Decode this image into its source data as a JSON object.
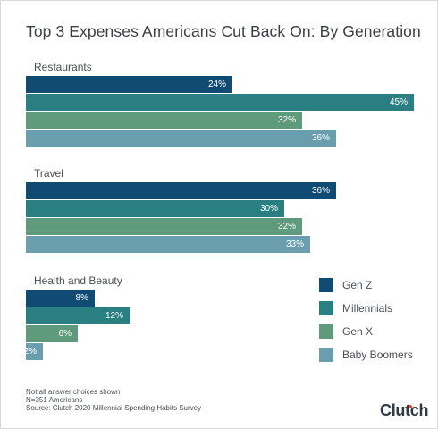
{
  "title": "Top 3 Expenses Americans Cut Back On: By Generation",
  "chart_data": {
    "type": "bar",
    "orientation": "horizontal",
    "title": "Top 3 Expenses Americans Cut Back On: By Generation",
    "categories": [
      "Restaurants",
      "Travel",
      "Health and Beauty"
    ],
    "series": [
      {
        "name": "Gen Z",
        "color": "#0f4b73",
        "values": [
          24,
          36,
          8
        ],
        "labels": [
          "24%",
          "36%",
          "8%"
        ]
      },
      {
        "name": "Millennials",
        "color": "#2a7f82",
        "values": [
          45,
          30,
          12
        ],
        "labels": [
          "45%",
          "30%",
          "12%"
        ]
      },
      {
        "name": "Gen X",
        "color": "#5f9a7c",
        "values": [
          32,
          32,
          6
        ],
        "labels": [
          "32%",
          "32%",
          "6%"
        ]
      },
      {
        "name": "Baby Boomers",
        "color": "#6a9eae",
        "values": [
          36,
          33,
          2
        ],
        "labels": [
          "36%",
          "33%",
          "2%"
        ]
      }
    ],
    "xlim": [
      0,
      45
    ],
    "grid": false,
    "legend_position": "bottom-right"
  },
  "footnotes": [
    "Not all answer choices shown",
    "N=351 Americans",
    "Source: Clutch 2020 Millennial Spending Habits Survey"
  ],
  "brand": "Clutch"
}
